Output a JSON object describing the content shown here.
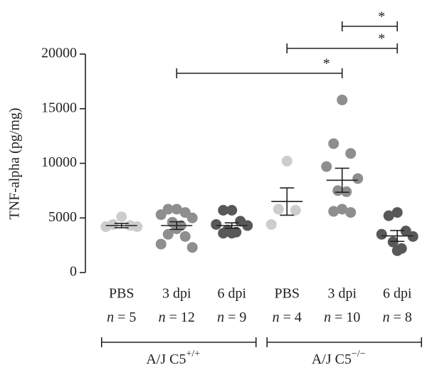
{
  "chart_data": {
    "type": "dot",
    "ylabel": "TNF-alpha (pg/mg)",
    "categories": [
      "PBS",
      "3 dpi",
      "6 dpi",
      "PBS",
      "3 dpi",
      "6 dpi"
    ],
    "n_labels": [
      "n = 5",
      "n = 12",
      "n = 9",
      "n = 4",
      "n = 10",
      "n = 8"
    ],
    "colors": [
      "#cdcdcd",
      "#8e8e8e",
      "#585858",
      "#cdcdcd",
      "#8e8e8e",
      "#585858"
    ],
    "values": [
      [
        5100,
        4400,
        4300,
        4200,
        4200
      ],
      [
        5800,
        5800,
        5500,
        5300,
        5000,
        4600,
        4300,
        4000,
        3500,
        3300,
        2600,
        2300
      ],
      [
        5700,
        5700,
        4700,
        4400,
        4300,
        3900,
        3700,
        3600,
        3600
      ],
      [
        10200,
        5800,
        5700,
        4400
      ],
      [
        15800,
        11800,
        10900,
        9700,
        8600,
        7500,
        7400,
        5800,
        5600,
        5500
      ],
      [
        5500,
        5200,
        3800,
        3500,
        3300,
        2800,
        2200,
        2000
      ]
    ],
    "means": [
      4300,
      4300,
      4300,
      6500,
      8450,
      3350
    ],
    "errors": [
      200,
      350,
      250,
      1250,
      1100,
      500
    ],
    "groups": [
      {
        "label": "A/J C5",
        "superscript": "+/+",
        "from": 0,
        "to": 2
      },
      {
        "label": "A/J C5",
        "superscript": "−/−",
        "from": 3,
        "to": 5
      }
    ],
    "comparisons": [
      {
        "from": 1,
        "to": 4,
        "label": "*"
      },
      {
        "from": 3,
        "to": 5,
        "label": "*"
      },
      {
        "from": 4,
        "to": 5,
        "label": "*"
      }
    ],
    "ylim": [
      0,
      20000
    ],
    "yticks": [
      0,
      5000,
      10000,
      15000,
      20000
    ]
  }
}
